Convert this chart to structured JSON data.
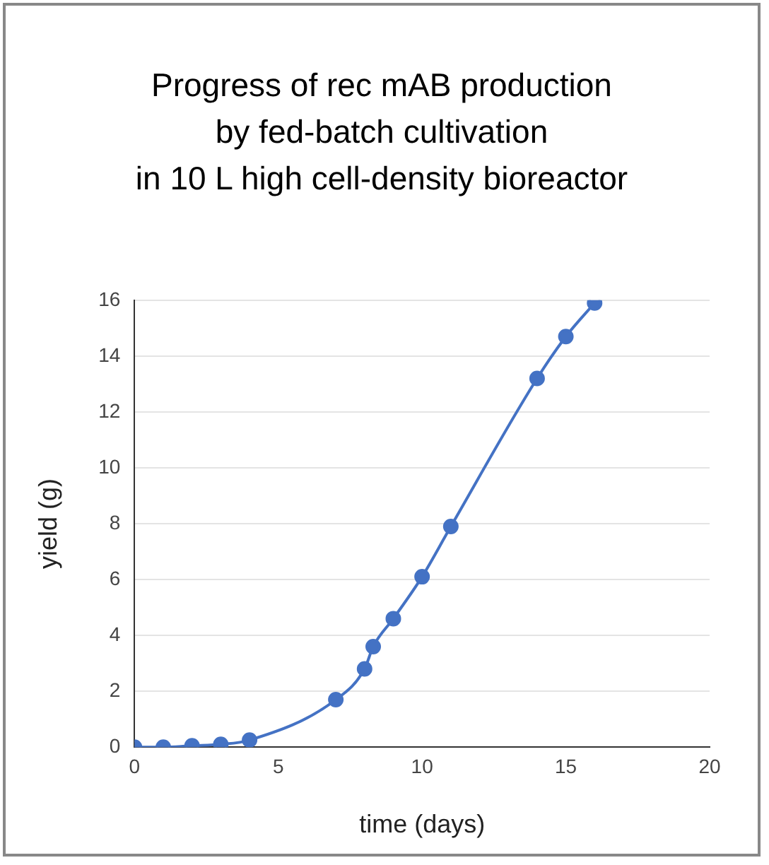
{
  "chart_data": {
    "type": "line",
    "title": "Progress of rec mAB production\nby fed-batch cultivation\nin 10 L high cell-density bioreactor",
    "xlabel": "time (days)",
    "ylabel": "yield (g)",
    "x": [
      0,
      1,
      2,
      3,
      4,
      7,
      8,
      8.3,
      9,
      10,
      11,
      14,
      15,
      16
    ],
    "series": [
      {
        "color": "#4472c4",
        "values": [
          0,
          0,
          0.05,
          0.1,
          0.25,
          1.7,
          2.8,
          3.6,
          4.6,
          6.1,
          7.9,
          13.2,
          14.7,
          15.9
        ]
      }
    ],
    "xlim": [
      0,
      20
    ],
    "xticks": [
      0,
      5,
      10,
      15,
      20
    ],
    "ylim": [
      0,
      16
    ],
    "yticks": [
      0,
      2,
      4,
      6,
      8,
      10,
      12,
      14,
      16
    ],
    "grid": "y",
    "marker": "circle",
    "line_style": "solid",
    "legend": false
  }
}
